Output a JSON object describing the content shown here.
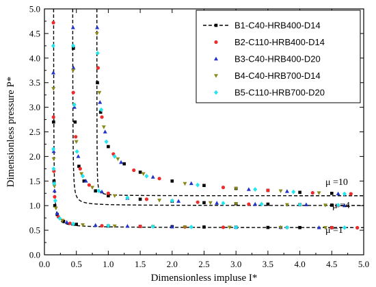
{
  "chart_data": {
    "type": "scatter",
    "xlabel": "Dimensionless impluse I*",
    "ylabel": "Dimensionless pressure P*",
    "xlim": [
      0.0,
      5.0
    ],
    "ylim": [
      0.0,
      5.0
    ],
    "xticks": [
      "0.0",
      "0.5",
      "1.0",
      "1.5",
      "2.0",
      "2.5",
      "3.0",
      "3.5",
      "4.0",
      "4.5",
      "5.0"
    ],
    "yticks": [
      "0.0",
      "0.5",
      "1.0",
      "1.5",
      "2.0",
      "2.5",
      "3.0",
      "3.5",
      "4.0",
      "4.5",
      "5.0"
    ],
    "legend_position": "top-right",
    "curves": [
      {
        "label": "μ =10",
        "p0": 1.2,
        "i0": 0.82
      },
      {
        "label": "μ =4",
        "p0": 1.0,
        "i0": 0.44
      },
      {
        "label": "μ =1",
        "p0": 0.55,
        "i0": 0.14
      }
    ],
    "series": [
      {
        "name": "B1-C40-HRB400-D14",
        "color": "#000000",
        "marker": "square",
        "line": "dashed",
        "points": [
          [
            0.143,
            2.7
          ],
          [
            0.15,
            1.5
          ],
          [
            0.162,
            1.0
          ],
          [
            0.2,
            0.82
          ],
          [
            0.3,
            0.68
          ],
          [
            0.5,
            0.62
          ],
          [
            1.0,
            0.585
          ],
          [
            1.5,
            0.577
          ],
          [
            2.0,
            0.572
          ],
          [
            2.5,
            0.565
          ],
          [
            3.0,
            0.56
          ],
          [
            3.5,
            0.556
          ],
          [
            4.0,
            0.554
          ],
          [
            4.5,
            0.553
          ],
          [
            0.453,
            4.2
          ],
          [
            0.48,
            2.7
          ],
          [
            0.54,
            1.8
          ],
          [
            0.62,
            1.5
          ],
          [
            0.8,
            1.3
          ],
          [
            1.0,
            1.2
          ],
          [
            1.5,
            1.13
          ],
          [
            2.0,
            1.09
          ],
          [
            2.5,
            1.06
          ],
          [
            3.0,
            1.04
          ],
          [
            3.5,
            1.03
          ],
          [
            4.0,
            1.02
          ],
          [
            4.5,
            1.01
          ],
          [
            0.83,
            3.5
          ],
          [
            0.88,
            2.9
          ],
          [
            1.0,
            2.2
          ],
          [
            1.25,
            1.85
          ],
          [
            1.5,
            1.68
          ],
          [
            2.0,
            1.5
          ],
          [
            2.5,
            1.41
          ],
          [
            3.0,
            1.35
          ],
          [
            3.5,
            1.31
          ],
          [
            4.0,
            1.27
          ],
          [
            4.5,
            1.25
          ]
        ]
      },
      {
        "name": "B2-C110-HRB400-D14",
        "color": "#ee2b2b",
        "marker": "circle",
        "line": "none",
        "points": [
          [
            0.14,
            4.72
          ],
          [
            0.142,
            2.8
          ],
          [
            0.148,
            1.7
          ],
          [
            0.16,
            1.18
          ],
          [
            0.22,
            0.77
          ],
          [
            0.4,
            0.64
          ],
          [
            0.9,
            0.59
          ],
          [
            1.5,
            0.577
          ],
          [
            2.2,
            0.567
          ],
          [
            2.8,
            0.56
          ],
          [
            3.8,
            0.556
          ],
          [
            4.5,
            0.552
          ],
          [
            4.9,
            0.55
          ],
          [
            0.452,
            3.3
          ],
          [
            0.49,
            2.4
          ],
          [
            0.56,
            1.75
          ],
          [
            0.7,
            1.42
          ],
          [
            1.0,
            1.25
          ],
          [
            1.6,
            1.13
          ],
          [
            2.4,
            1.07
          ],
          [
            3.2,
            1.03
          ],
          [
            4.0,
            1.02
          ],
          [
            4.6,
            1.0
          ],
          [
            0.84,
            3.8
          ],
          [
            0.9,
            2.8
          ],
          [
            1.08,
            2.05
          ],
          [
            1.4,
            1.72
          ],
          [
            1.8,
            1.55
          ],
          [
            2.8,
            1.37
          ],
          [
            3.5,
            1.31
          ],
          [
            4.2,
            1.26
          ],
          [
            4.8,
            1.24
          ]
        ]
      },
      {
        "name": "B3-C40-HRB400-D20",
        "color": "#2233cc",
        "marker": "triangle-up",
        "line": "none",
        "points": [
          [
            0.139,
            3.7
          ],
          [
            0.145,
            2.1
          ],
          [
            0.158,
            1.3
          ],
          [
            0.2,
            0.84
          ],
          [
            0.35,
            0.66
          ],
          [
            0.8,
            0.6
          ],
          [
            1.3,
            0.58
          ],
          [
            2.0,
            0.568
          ],
          [
            3.0,
            0.56
          ],
          [
            3.7,
            0.556
          ],
          [
            4.3,
            0.553
          ],
          [
            0.448,
            4.62
          ],
          [
            0.455,
            3.8
          ],
          [
            0.47,
            3.0
          ],
          [
            0.53,
            2.0
          ],
          [
            0.65,
            1.5
          ],
          [
            0.9,
            1.28
          ],
          [
            1.3,
            1.15
          ],
          [
            2.1,
            1.09
          ],
          [
            2.7,
            1.05
          ],
          [
            3.3,
            1.03
          ],
          [
            4.1,
            1.02
          ],
          [
            4.7,
            1.0
          ],
          [
            0.826,
            4.62
          ],
          [
            0.87,
            3.1
          ],
          [
            0.95,
            2.5
          ],
          [
            1.2,
            1.88
          ],
          [
            1.7,
            1.58
          ],
          [
            2.3,
            1.45
          ],
          [
            3.2,
            1.33
          ],
          [
            3.8,
            1.29
          ],
          [
            4.6,
            1.24
          ]
        ]
      },
      {
        "name": "B4-C40-HRB700-D14",
        "color": "#8a8a1a",
        "marker": "triangle-down",
        "line": "none",
        "points": [
          [
            0.141,
            3.38
          ],
          [
            0.146,
            1.95
          ],
          [
            0.155,
            1.4
          ],
          [
            0.18,
            0.95
          ],
          [
            0.28,
            0.7
          ],
          [
            0.6,
            0.61
          ],
          [
            1.1,
            0.585
          ],
          [
            1.7,
            0.575
          ],
          [
            2.2,
            0.567
          ],
          [
            2.9,
            0.562
          ],
          [
            3.7,
            0.556
          ],
          [
            4.4,
            0.553
          ],
          [
            0.449,
            3.75
          ],
          [
            0.46,
            3.05
          ],
          [
            0.5,
            2.3
          ],
          [
            0.58,
            1.65
          ],
          [
            0.75,
            1.37
          ],
          [
            1.1,
            1.2
          ],
          [
            1.8,
            1.11
          ],
          [
            2.6,
            1.06
          ],
          [
            3.0,
            1.04
          ],
          [
            3.8,
            1.02
          ],
          [
            4.4,
            1.01
          ],
          [
            0.822,
            4.5
          ],
          [
            0.86,
            3.3
          ],
          [
            0.93,
            2.6
          ],
          [
            1.15,
            1.95
          ],
          [
            1.55,
            1.65
          ],
          [
            2.2,
            1.45
          ],
          [
            3.0,
            1.35
          ],
          [
            3.7,
            1.3
          ],
          [
            4.3,
            1.26
          ]
        ]
      },
      {
        "name": "B5-C110-HRB700-D20",
        "color": "#22e5ee",
        "marker": "diamond",
        "line": "none",
        "points": [
          [
            0.138,
            4.25
          ],
          [
            0.14,
            2.15
          ],
          [
            0.144,
            1.75
          ],
          [
            0.152,
            1.45
          ],
          [
            0.17,
            1.1
          ],
          [
            0.24,
            0.74
          ],
          [
            0.45,
            0.63
          ],
          [
            1.0,
            0.59
          ],
          [
            1.7,
            0.575
          ],
          [
            2.3,
            0.565
          ],
          [
            3.0,
            0.56
          ],
          [
            3.8,
            0.555
          ],
          [
            4.7,
            0.552
          ],
          [
            0.451,
            4.25
          ],
          [
            0.468,
            3.05
          ],
          [
            0.51,
            2.1
          ],
          [
            0.6,
            1.6
          ],
          [
            0.85,
            1.3
          ],
          [
            1.3,
            1.16
          ],
          [
            2.0,
            1.1
          ],
          [
            2.8,
            1.05
          ],
          [
            3.4,
            1.03
          ],
          [
            4.0,
            1.02
          ],
          [
            4.6,
            1.01
          ],
          [
            0.833,
            4.1
          ],
          [
            0.89,
            2.95
          ],
          [
            0.97,
            2.3
          ],
          [
            1.1,
            2.0
          ],
          [
            1.6,
            1.6
          ],
          [
            2.4,
            1.42
          ],
          [
            3.3,
            1.33
          ],
          [
            3.9,
            1.28
          ],
          [
            4.7,
            1.24
          ]
        ]
      }
    ]
  }
}
